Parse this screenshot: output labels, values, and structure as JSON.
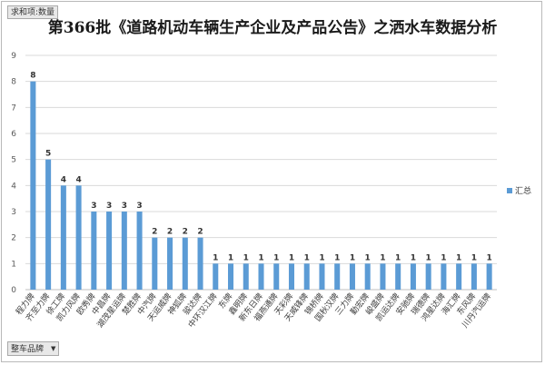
{
  "pivot": {
    "value_field": "求和项:数量",
    "row_field": "整车品牌"
  },
  "chart_data": {
    "type": "bar",
    "title": "第366批《道路机动车辆生产企业及产品公告》之洒水车数据分析",
    "categories": [
      "程力牌",
      "齐至力牌",
      "徐工牌",
      "凯力风牌",
      "欧秀牌",
      "中昌牌",
      "湖茂星运牌",
      "楚胜牌",
      "中汽牌",
      "天运威牌",
      "神狐牌",
      "骏达牌",
      "中环汉江牌",
      "东牌",
      "鑫明牌",
      "新东日牌",
      "福燕通牌",
      "天彩牌",
      "天威锋牌",
      "锦桥牌",
      "国秋汉牌",
      "三力牌",
      "勤宏牌",
      "峻盛牌",
      "凯运达牌",
      "安驰牌",
      "瑞德牌",
      "鸿星达牌",
      "海汇牌",
      "东风牌",
      "川丹汽运牌"
    ],
    "series": [
      {
        "name": "汇总",
        "values": [
          8,
          5,
          4,
          4,
          3,
          3,
          3,
          3,
          2,
          2,
          2,
          2,
          1,
          1,
          1,
          1,
          1,
          1,
          1,
          1,
          1,
          1,
          1,
          1,
          1,
          1,
          1,
          1,
          1,
          1,
          1
        ]
      }
    ],
    "ylim": [
      0,
      9
    ],
    "yticks": [
      0,
      1,
      2,
      3,
      4,
      5,
      6,
      7,
      8,
      9
    ],
    "grid": true,
    "legend_position": "right",
    "bar_color": "#5b9bd5"
  }
}
